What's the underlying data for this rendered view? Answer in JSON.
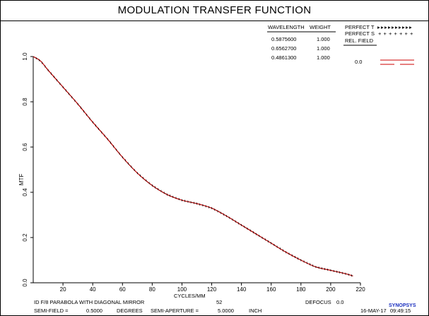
{
  "title": "MODULATION TRANSFER FUNCTION",
  "chart_data": {
    "type": "line",
    "ylabel": "MTF",
    "xlabel": "CYCLES/MM",
    "xlim": [
      0,
      220
    ],
    "ylim": [
      0,
      1.0
    ],
    "x_ticks": [
      "20",
      "40",
      "60",
      "80",
      "100",
      "120",
      "140",
      "160",
      "180",
      "200",
      "220"
    ],
    "y_ticks": [
      "0.0",
      "0.2",
      "0.4",
      "0.6",
      "0.8",
      "1.0"
    ],
    "grid": false,
    "x_tick_marker": "52",
    "series": [
      {
        "x": [
          0,
          5,
          10,
          20,
          30,
          40,
          50,
          60,
          70,
          80,
          90,
          100,
          110,
          120,
          130,
          140,
          150,
          160,
          170,
          180,
          190,
          200,
          210,
          215
        ],
        "y": [
          1.0,
          0.98,
          0.94,
          0.865,
          0.79,
          0.71,
          0.635,
          0.555,
          0.485,
          0.43,
          0.39,
          0.365,
          0.35,
          0.33,
          0.295,
          0.255,
          0.215,
          0.175,
          0.135,
          0.1,
          0.07,
          0.055,
          0.04,
          0.03
        ],
        "color": "#cc0000"
      }
    ],
    "x_markers": [
      1,
      2,
      3,
      4,
      5,
      6,
      7,
      8,
      9,
      10,
      11,
      12,
      13,
      14,
      15,
      16,
      17,
      18,
      19,
      20,
      21,
      22,
      23,
      24,
      25,
      26,
      27,
      28,
      29,
      30,
      31,
      32,
      33,
      34,
      35,
      36,
      37,
      38,
      39,
      40,
      41,
      42,
      43,
      44,
      45,
      46,
      47,
      48,
      49,
      50,
      51,
      52,
      53,
      54,
      55,
      56,
      57,
      58,
      59,
      60,
      61,
      62,
      63,
      64,
      65,
      66,
      67,
      68,
      69,
      70,
      71,
      72,
      73,
      74,
      75,
      76,
      77,
      78,
      79,
      80,
      81,
      82,
      83,
      84,
      85,
      86,
      87,
      88,
      89,
      90,
      91,
      92,
      93,
      94,
      95,
      96,
      97,
      98,
      99,
      100,
      101,
      102,
      103,
      104,
      105,
      106,
      107,
      108,
      109,
      110,
      111,
      112,
      113,
      114,
      115,
      116,
      117,
      118,
      119,
      120,
      121,
      122,
      123,
      124,
      125,
      126,
      127,
      128,
      129,
      130,
      131,
      132,
      133,
      134,
      135,
      136,
      137,
      138,
      139,
      140,
      141,
      142,
      143,
      144,
      145,
      146,
      147,
      148,
      149,
      150,
      151,
      152,
      153,
      154,
      155,
      156,
      157,
      158,
      159,
      160,
      161,
      162,
      163,
      164,
      165,
      166,
      167,
      168,
      169,
      170,
      171,
      172,
      173,
      174,
      175,
      176,
      177,
      178,
      179,
      180,
      181,
      182,
      183,
      184,
      185,
      186,
      187,
      188,
      189,
      190,
      191,
      192,
      193,
      194,
      195,
      196,
      197,
      198,
      199,
      200,
      201,
      202,
      203,
      204,
      205,
      206,
      207,
      208,
      209,
      210,
      211,
      212,
      213,
      214
    ]
  },
  "legend": {
    "wavelength_header": "WAVELENGTH",
    "weight_header": "WEIGHT",
    "rows": [
      {
        "wavelength": "0.5875600",
        "weight": "1.000"
      },
      {
        "wavelength": "0.6562700",
        "weight": "1.000"
      },
      {
        "wavelength": "0.4861300",
        "weight": "1.000"
      }
    ],
    "perfect_t": "PERFECT T",
    "perfect_s": "PERFECT S",
    "rel_field": "REL. FIELD",
    "field_value": "0.0",
    "line_color": "#cc0000"
  },
  "footer": {
    "description": "ID F/8 PARABOLA WITH DIAGONAL MIRROR",
    "defocus_label": "DEFOCUS",
    "defocus_value": "0.0",
    "semi_field_label": "SEMI-FIELD =",
    "semi_field_value": "0.5000",
    "degrees_label": "DEGREES",
    "semi_aperture_label": "SEMI-APERTURE =",
    "semi_aperture_value": "5.0000",
    "inch_label": "INCH",
    "logo": "SYNOPSYS",
    "logo_color": "#1a2fbf",
    "date": "16-MAY-17",
    "time": "09:49:15"
  }
}
